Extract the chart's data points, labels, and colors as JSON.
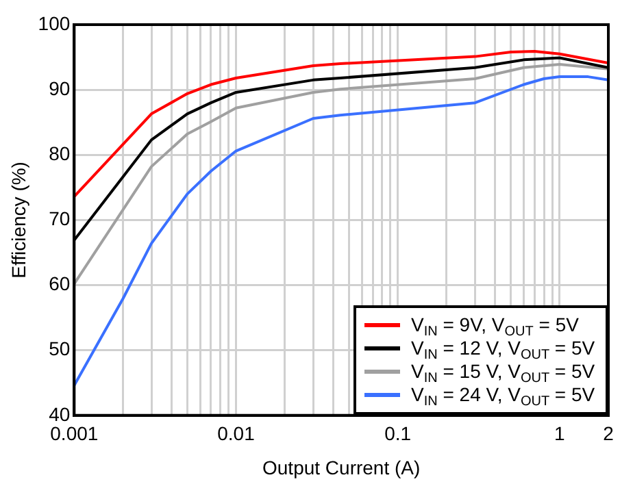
{
  "chart_data": {
    "type": "line",
    "xlabel": "Output Current (A)",
    "ylabel": "Efficiency (%)",
    "xlim": [
      0.001,
      2
    ],
    "ylim": [
      40,
      100
    ],
    "xticks": [
      0.001,
      {
        "value": 0.002,
        "label": null
      },
      {
        "value": 0.003,
        "label": null
      },
      {
        "value": 0.004,
        "label": null
      },
      {
        "value": 0.005,
        "label": null
      },
      {
        "value": 0.006,
        "label": null
      },
      {
        "value": 0.007,
        "label": null
      },
      {
        "value": 0.008,
        "label": null
      },
      {
        "value": 0.009,
        "label": null
      },
      0.01,
      {
        "value": 0.02,
        "label": null
      },
      {
        "value": 0.03,
        "label": null
      },
      {
        "value": 0.04,
        "label": null
      },
      {
        "value": 0.05,
        "label": null
      },
      {
        "value": 0.06,
        "label": null
      },
      {
        "value": 0.07,
        "label": null
      },
      {
        "value": 0.08,
        "label": null
      },
      {
        "value": 0.09,
        "label": null
      },
      0.1,
      {
        "value": 0.2,
        "label": null
      },
      {
        "value": 0.3,
        "label": null
      },
      {
        "value": 0.4,
        "label": null
      },
      {
        "value": 0.5,
        "label": null
      },
      {
        "value": 0.6,
        "label": null
      },
      {
        "value": 0.7,
        "label": null
      },
      {
        "value": 0.8,
        "label": null
      },
      {
        "value": 0.9,
        "label": null
      },
      1,
      2
    ],
    "yticks": [
      40,
      50,
      60,
      70,
      80,
      90,
      100
    ],
    "log": "x",
    "grid": true,
    "legend": "bottom right",
    "marker": "none",
    "line_style": "solid",
    "series": [
      {
        "name": "V$_{IN}$ = 9V, V$_{OUT}$ = 5V",
        "color": "#ff0000",
        "x": [
          0.001,
          0.003,
          0.005,
          0.007,
          0.01,
          0.03,
          0.044,
          0.3,
          0.5,
          0.7,
          1,
          2
        ],
        "values": [
          73.6,
          86.3,
          89.4,
          90.8,
          91.8,
          93.7,
          94.0,
          95.1,
          95.8,
          95.9,
          95.5,
          94.1
        ]
      },
      {
        "name": "V$_{IN}$ = 12 V, V$_{OUT}$ = 5V",
        "color": "#000000",
        "x": [
          0.001,
          0.003,
          0.005,
          0.007,
          0.01,
          0.03,
          0.044,
          0.3,
          0.6,
          1,
          2
        ],
        "values": [
          66.9,
          82.3,
          86.3,
          88.0,
          89.6,
          91.5,
          91.8,
          93.4,
          94.6,
          94.9,
          93.4
        ]
      },
      {
        "name": "V$_{IN}$ = 15 V, V$_{OUT}$ = 5V",
        "color": "#a0a0a0",
        "x": [
          0.001,
          0.003,
          0.005,
          0.007,
          0.01,
          0.03,
          0.044,
          0.3,
          0.6,
          1,
          2
        ],
        "values": [
          60.2,
          78.2,
          83.2,
          85.1,
          87.2,
          89.6,
          90.1,
          91.7,
          93.4,
          93.9,
          93.2
        ]
      },
      {
        "name": "V$_{IN}$ = 24 V, V$_{OUT}$ = 5V",
        "color": "#3a70ff",
        "x": [
          0.001,
          0.002,
          0.003,
          0.005,
          0.007,
          0.01,
          0.03,
          0.044,
          0.3,
          0.6,
          0.8,
          1,
          1.5,
          2
        ],
        "values": [
          44.6,
          57.9,
          66.4,
          74.0,
          77.5,
          80.6,
          85.6,
          86.1,
          88.0,
          90.8,
          91.7,
          92.0,
          92.0,
          91.5
        ]
      }
    ]
  }
}
